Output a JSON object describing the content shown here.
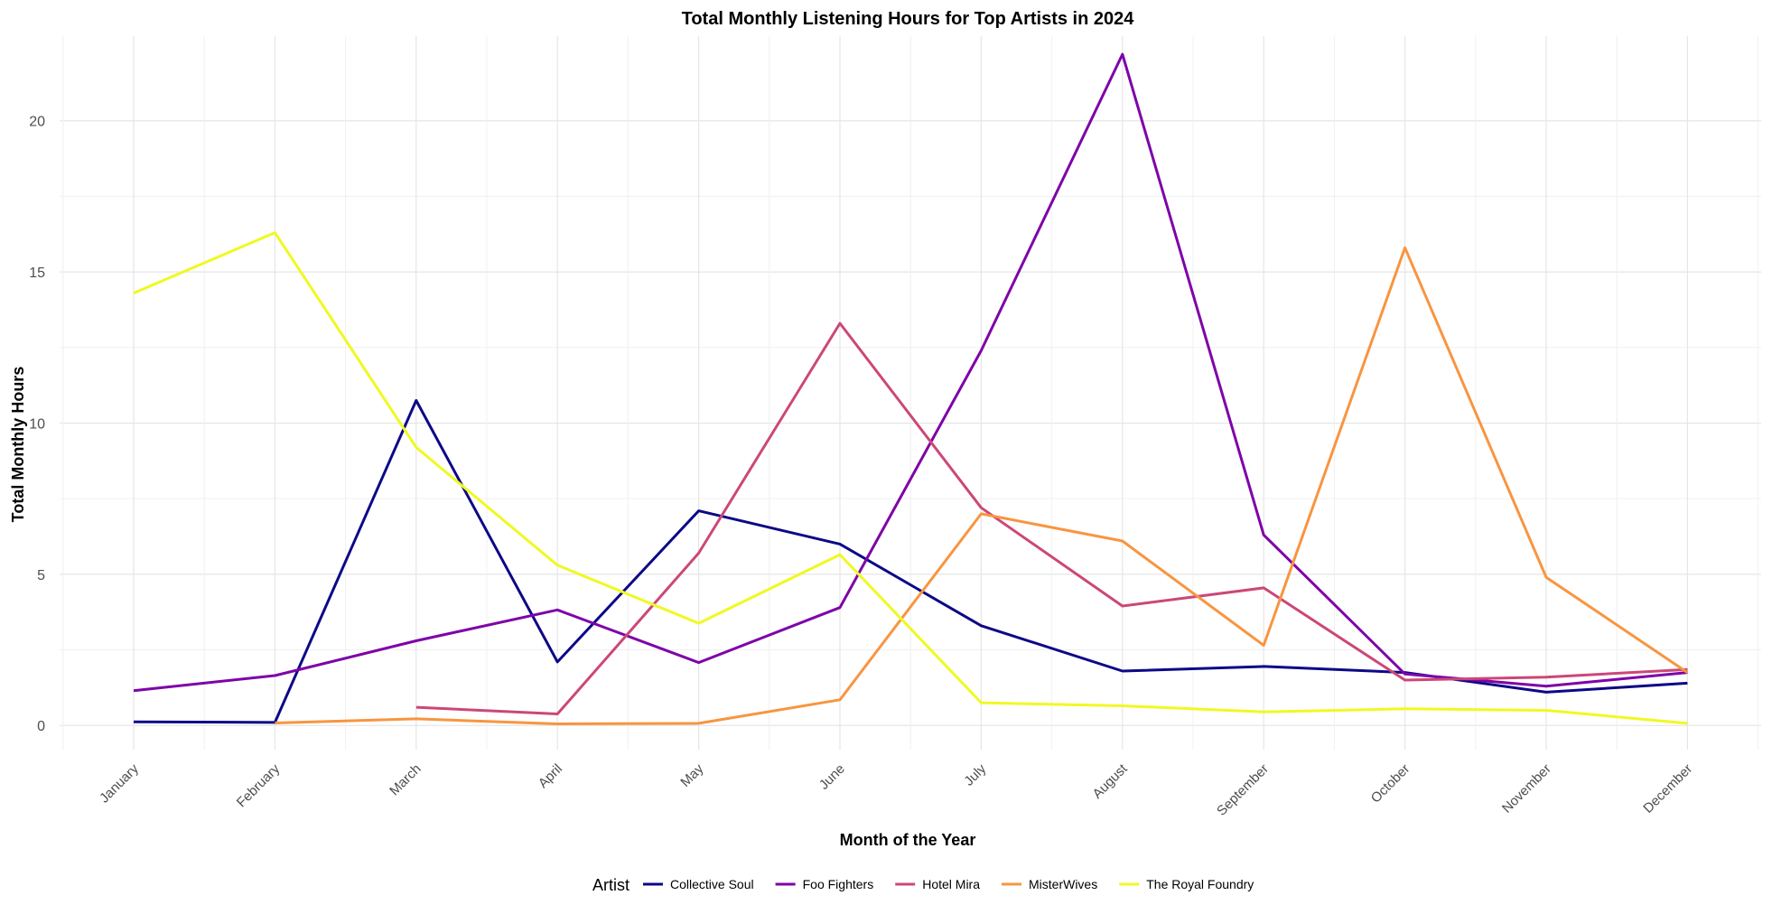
{
  "chart_data": {
    "type": "line",
    "title": "Total Monthly Listening Hours for Top Artists in 2024",
    "xlabel": "Month of the Year",
    "ylabel": "Total Monthly Hours",
    "ylim": [
      -0.8,
      22.8
    ],
    "y_ticks": [
      0,
      5,
      10,
      15,
      20
    ],
    "y_tick_labels": [
      "0",
      "5",
      "10",
      "15",
      "20"
    ],
    "grid": true,
    "legend": {
      "title": "Artist",
      "position": "bottom"
    },
    "categories": [
      "January",
      "February",
      "March",
      "April",
      "May",
      "June",
      "July",
      "August",
      "September",
      "October",
      "November",
      "December"
    ],
    "series": [
      {
        "name": "Collective Soul",
        "color": "#0d0887",
        "values": [
          0.12,
          0.1,
          10.75,
          2.1,
          7.1,
          6.0,
          3.3,
          1.8,
          1.95,
          1.75,
          1.1,
          1.4
        ]
      },
      {
        "name": "Foo Fighters",
        "color": "#7e03a8",
        "values": [
          1.15,
          1.65,
          2.8,
          3.82,
          2.08,
          3.9,
          12.4,
          22.2,
          6.3,
          1.7,
          1.3,
          1.75
        ]
      },
      {
        "name": "Hotel Mira",
        "color": "#cc4778",
        "values": [
          null,
          null,
          0.6,
          0.38,
          5.7,
          13.3,
          7.2,
          3.95,
          4.55,
          1.5,
          1.6,
          1.85
        ]
      },
      {
        "name": "MisterWives",
        "color": "#f89540",
        "values": [
          null,
          0.08,
          0.22,
          0.05,
          0.07,
          0.85,
          7.0,
          6.1,
          2.65,
          15.8,
          4.9,
          1.75
        ]
      },
      {
        "name": "The Royal Foundry",
        "color": "#f0f921",
        "values": [
          14.3,
          16.3,
          9.2,
          5.3,
          3.38,
          5.65,
          0.75,
          0.65,
          0.45,
          0.55,
          0.5,
          0.07
        ]
      }
    ]
  }
}
